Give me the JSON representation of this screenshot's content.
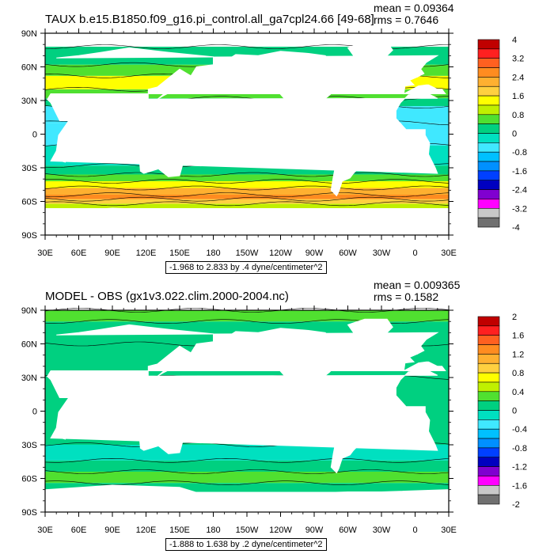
{
  "panels": [
    {
      "title": "TAUX b.e15.B1850.f09_g16.pi_control.all_ga7cpl24.66 [49-68]",
      "mean": "mean = 0.09364",
      "rms": "rms = 0.7646",
      "range": "-1.968 to 2.833 by .4 dyne/centimeter^2",
      "lat_ticks": [
        "90N",
        "60N",
        "30N",
        "0",
        "30S",
        "60S",
        "90S"
      ],
      "lon_ticks": [
        "30E",
        "60E",
        "90E",
        "120E",
        "150E",
        "180",
        "150W",
        "120W",
        "90W",
        "60W",
        "30W",
        "0",
        "30E"
      ],
      "colorbar_labels": [
        "4",
        "3.2",
        "2.4",
        "1.6",
        "0.8",
        "0",
        "-0.8",
        "-1.6",
        "-2.4",
        "-3.2",
        "-4"
      ],
      "colorbar_colors": [
        "#c00000",
        "#ff2020",
        "#ff6020",
        "#ff8c20",
        "#ffb030",
        "#ffd040",
        "#ffff00",
        "#c0f000",
        "#50e030",
        "#00d080",
        "#00e0c0",
        "#40e8ff",
        "#00c0ff",
        "#0090ff",
        "#0040ff",
        "#0000c0",
        "#8000d0",
        "#ff00ff",
        "#c8c8c8",
        "#707070"
      ]
    },
    {
      "title": "MODEL - OBS (gx1v3.022.clim.2000-2004.nc)",
      "mean": "mean = 0.009365",
      "rms": "rms = 0.1582",
      "range": "-1.888 to 1.638 by .2 dyne/centimeter^2",
      "lat_ticks": [
        "90N",
        "60N",
        "30N",
        "0",
        "30S",
        "60S",
        "90S"
      ],
      "lon_ticks": [
        "30E",
        "60E",
        "90E",
        "120E",
        "150E",
        "180",
        "150W",
        "120W",
        "90W",
        "60W",
        "30W",
        "0",
        "30E"
      ],
      "colorbar_labels": [
        "2",
        "1.6",
        "1.2",
        "0.8",
        "0.4",
        "0",
        "-0.4",
        "-0.8",
        "-1.2",
        "-1.6",
        "-2"
      ],
      "colorbar_colors": [
        "#c00000",
        "#ff2020",
        "#ff6020",
        "#ff8c20",
        "#ffb030",
        "#ffd040",
        "#ffff00",
        "#c0f000",
        "#50e030",
        "#00d080",
        "#00e0c0",
        "#40e8ff",
        "#00c0ff",
        "#0090ff",
        "#0040ff",
        "#0000c0",
        "#8000d0",
        "#ff00ff",
        "#c8c8c8",
        "#707070"
      ]
    }
  ],
  "chart_data": [
    {
      "type": "heatmap",
      "title": "TAUX b.e15.B1850.f09_g16.pi_control.all_ga7cpl24.66 [49-68]",
      "xlabel": "",
      "ylabel": "",
      "xlim": [
        30,
        390
      ],
      "ylim": [
        -90,
        90
      ],
      "levels": [
        -4,
        -3.6,
        -3.2,
        -2.8,
        -2.4,
        -2.0,
        -1.6,
        -1.2,
        -0.8,
        -0.4,
        0,
        0.4,
        0.8,
        1.2,
        1.6,
        2.0,
        2.4,
        2.8,
        3.2,
        3.6,
        4
      ],
      "zones": [
        {
          "lat": [
            -90,
            -66
          ],
          "value": null
        },
        {
          "lat": [
            -66,
            -62
          ],
          "value": 0.8
        },
        {
          "lat": [
            -62,
            -58
          ],
          "value": 1.6
        },
        {
          "lat": [
            -58,
            -54
          ],
          "value": 2.4
        },
        {
          "lat": [
            -54,
            -48
          ],
          "value": 2.0
        },
        {
          "lat": [
            -48,
            -42
          ],
          "value": 1.2
        },
        {
          "lat": [
            -42,
            -36
          ],
          "value": 0.4
        },
        {
          "lat": [
            -36,
            -28
          ],
          "value": 0
        },
        {
          "lat": [
            -28,
            -10
          ],
          "value": -0.4
        },
        {
          "lat": [
            -10,
            10
          ],
          "value": -0.8
        },
        {
          "lat": [
            10,
            25
          ],
          "value": -0.8
        },
        {
          "lat": [
            25,
            32
          ],
          "value": 0
        },
        {
          "lat": [
            32,
            40
          ],
          "value": 0.4
        },
        {
          "lat": [
            40,
            52
          ],
          "value": 1.2
        },
        {
          "lat": [
            52,
            62
          ],
          "value": 0.4
        },
        {
          "lat": [
            62,
            78
          ],
          "value": 0
        },
        {
          "lat": [
            78,
            90
          ],
          "value": null
        }
      ]
    },
    {
      "type": "heatmap",
      "title": "MODEL - OBS (gx1v3.022.clim.2000-2004.nc)",
      "xlabel": "",
      "ylabel": "",
      "xlim": [
        30,
        390
      ],
      "ylim": [
        -90,
        90
      ],
      "levels": [
        -2,
        -1.8,
        -1.6,
        -1.4,
        -1.2,
        -1.0,
        -0.8,
        -0.6,
        -0.4,
        -0.2,
        0,
        0.2,
        0.4,
        0.6,
        0.8,
        1.0,
        1.2,
        1.4,
        1.6,
        1.8,
        2
      ],
      "zones": [
        {
          "lat": [
            -90,
            -72
          ],
          "value": null
        },
        {
          "lat": [
            -72,
            -64
          ],
          "value": 0
        },
        {
          "lat": [
            -64,
            -54
          ],
          "value": 0.3
        },
        {
          "lat": [
            -54,
            -44
          ],
          "value": 0.1
        },
        {
          "lat": [
            -44,
            -30
          ],
          "value": -0.1
        },
        {
          "lat": [
            -30,
            30
          ],
          "value": 0.05
        },
        {
          "lat": [
            30,
            60
          ],
          "value": 0.1
        },
        {
          "lat": [
            60,
            80
          ],
          "value": 0
        },
        {
          "lat": [
            80,
            90
          ],
          "value": 0.2
        }
      ]
    }
  ]
}
